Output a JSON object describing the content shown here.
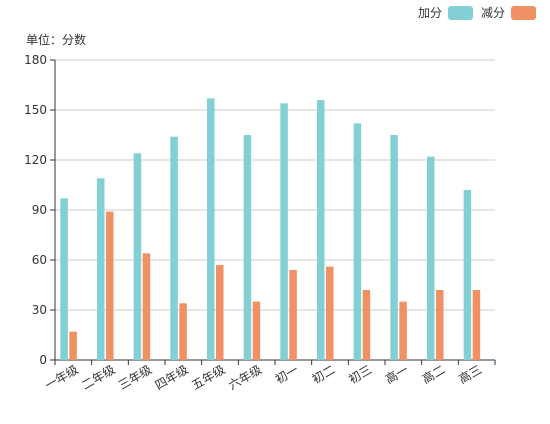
{
  "chart_data": {
    "type": "bar",
    "unit_label": "单位：分数",
    "categories": [
      "一年级",
      "二年级",
      "三年级",
      "四年级",
      "五年级",
      "六年级",
      "初一",
      "初二",
      "初三",
      "高一",
      "高二",
      "高三"
    ],
    "series": [
      {
        "name": "加分",
        "color": "#82cfd4",
        "values": [
          97,
          109,
          124,
          134,
          157,
          135,
          154,
          156,
          142,
          135,
          122,
          102
        ]
      },
      {
        "name": "减分",
        "color": "#ef9163",
        "values": [
          17,
          89,
          64,
          34,
          57,
          35,
          54,
          56,
          42,
          35,
          42,
          42
        ]
      }
    ],
    "ylim": [
      0,
      180
    ],
    "yticks": [
      0,
      30,
      60,
      90,
      120,
      150,
      180
    ],
    "grid": true,
    "legend_position": "top-right"
  }
}
